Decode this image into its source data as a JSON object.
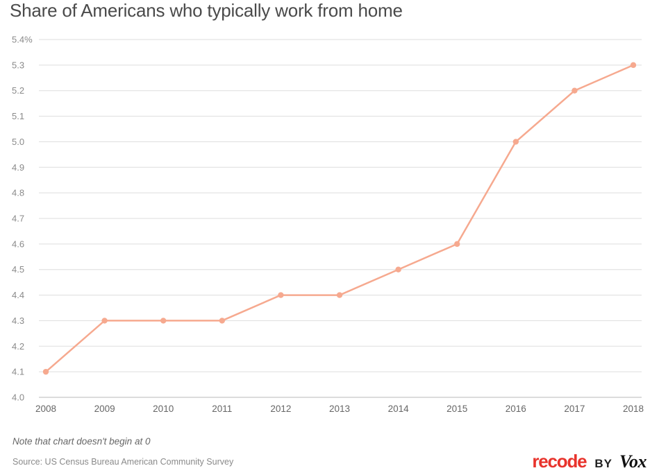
{
  "chart_data": {
    "type": "line",
    "title": "Share of Americans who typically work from home",
    "xlabel": "",
    "ylabel": "",
    "x": [
      "2008",
      "2009",
      "2010",
      "2011",
      "2012",
      "2013",
      "2014",
      "2015",
      "2016",
      "2017",
      "2018"
    ],
    "series": [
      {
        "values": [
          4.1,
          4.3,
          4.3,
          4.3,
          4.4,
          4.4,
          4.5,
          4.6,
          5.0,
          5.2,
          5.3
        ],
        "color": "#f6a98f"
      }
    ],
    "ylim": [
      4.0,
      5.4
    ],
    "yticks": [
      4.0,
      4.1,
      4.2,
      4.3,
      4.4,
      4.5,
      4.6,
      4.7,
      4.8,
      4.9,
      5.0,
      5.1,
      5.2,
      5.3,
      5.4
    ],
    "ytick_labels": [
      "4.0",
      "4.1",
      "4.2",
      "4.3",
      "4.4",
      "4.5",
      "4.6",
      "4.7",
      "4.8",
      "4.9",
      "5.0",
      "5.1",
      "5.2",
      "5.3",
      "5.4%"
    ],
    "grid": true,
    "legend": "none"
  },
  "footer": {
    "note": "Note that chart doesn't begin at 0",
    "source": "Source: US Census Bureau American Community Survey"
  },
  "brand": {
    "recode": "recode",
    "by": "BY",
    "vox": "Vox",
    "recode_color": "#e8332c"
  }
}
